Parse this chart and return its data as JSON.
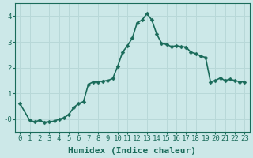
{
  "title": "",
  "xlabel": "Humidex (Indice chaleur)",
  "ylabel": "",
  "background_color": "#cce8e8",
  "plot_bg_color": "#cce8e8",
  "line_color": "#1a6b5a",
  "marker_color": "#1a6b5a",
  "grid_color": "#b8d8d8",
  "x_values": [
    0,
    1,
    1.5,
    2,
    2.5,
    3,
    3.5,
    4,
    4.5,
    5,
    5.5,
    6,
    6.5,
    7,
    7.5,
    8,
    8.5,
    9,
    9.5,
    10,
    10.5,
    11,
    11.5,
    12,
    12.5,
    13,
    13.5,
    14,
    14.5,
    15,
    15.5,
    16,
    16.5,
    17,
    17.5,
    18,
    18.5,
    19,
    19.5,
    20,
    20.5,
    21,
    21.5,
    22,
    22.5,
    23
  ],
  "y_values": [
    0.6,
    -0.05,
    -0.1,
    -0.05,
    -0.12,
    -0.1,
    -0.08,
    0.0,
    0.05,
    0.18,
    0.45,
    0.6,
    0.68,
    1.35,
    1.45,
    1.45,
    1.48,
    1.5,
    1.58,
    2.05,
    2.6,
    2.85,
    3.15,
    3.75,
    3.85,
    4.1,
    3.85,
    3.3,
    2.95,
    2.9,
    2.82,
    2.85,
    2.82,
    2.8,
    2.6,
    2.55,
    2.45,
    2.4,
    1.45,
    1.5,
    1.6,
    1.5,
    1.55,
    1.5,
    1.45,
    1.45
  ],
  "xlim": [
    -0.5,
    23.5
  ],
  "ylim": [
    -0.5,
    4.5
  ],
  "yticks": [
    0,
    1,
    2,
    3,
    4
  ],
  "ytick_labels": [
    "-0",
    "1",
    "2",
    "3",
    "4"
  ],
  "xticks": [
    0,
    1,
    2,
    3,
    4,
    5,
    6,
    7,
    8,
    9,
    10,
    11,
    12,
    13,
    14,
    15,
    16,
    17,
    18,
    19,
    20,
    21,
    22,
    23
  ],
  "marker_size": 2.5,
  "line_width": 1.2,
  "font_size": 8,
  "tick_font_size": 6.5
}
